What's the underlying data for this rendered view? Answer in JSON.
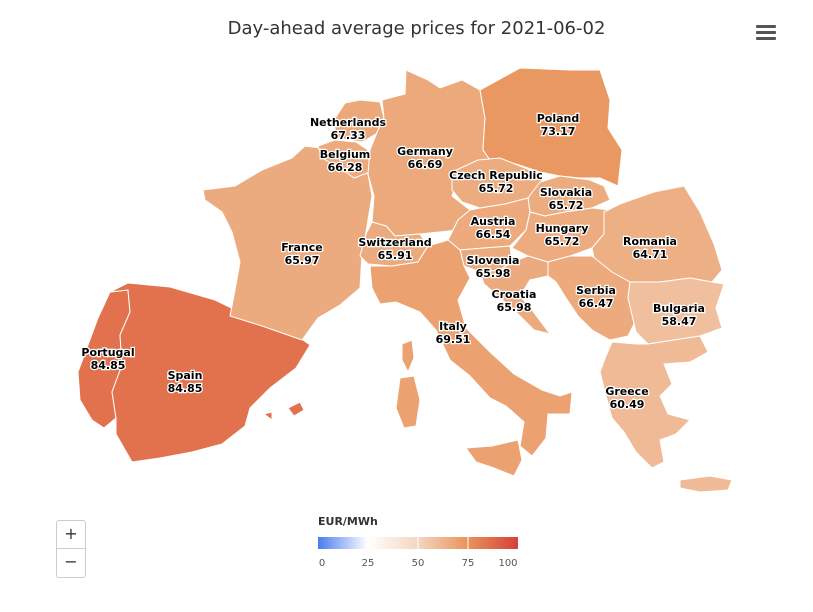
{
  "title": "Day-ahead average prices for 2021-06-02",
  "menu_icon": "hamburger-menu-icon",
  "zoom": {
    "in_label": "+",
    "out_label": "−"
  },
  "legend": {
    "title": "EUR/MWh",
    "min": 0,
    "max": 100,
    "ticks": [
      "0",
      "25",
      "50",
      "75",
      "100"
    ],
    "colors": [
      "#4a7cf0",
      "#ffffff",
      "#f4d6c0",
      "#e8935a",
      "#d6403a"
    ]
  },
  "chart_data": {
    "type": "choropleth",
    "unit": "EUR/MWh",
    "date": "2021-06-02",
    "regions": [
      {
        "name": "Netherlands",
        "value": "67.33"
      },
      {
        "name": "Belgium",
        "value": "66.28"
      },
      {
        "name": "Germany",
        "value": "66.69"
      },
      {
        "name": "Poland",
        "value": "73.17"
      },
      {
        "name": "Czech Republic",
        "value": "65.72"
      },
      {
        "name": "Slovakia",
        "value": "65.72"
      },
      {
        "name": "France",
        "value": "65.97"
      },
      {
        "name": "Switzerland",
        "value": "65.91"
      },
      {
        "name": "Austria",
        "value": "66.54"
      },
      {
        "name": "Hungary",
        "value": "65.72"
      },
      {
        "name": "Romania",
        "value": "64.71"
      },
      {
        "name": "Slovenia",
        "value": "65.98"
      },
      {
        "name": "Croatia",
        "value": "65.98"
      },
      {
        "name": "Serbia",
        "value": "66.47"
      },
      {
        "name": "Bulgaria",
        "value": "58.47"
      },
      {
        "name": "Italy",
        "value": "69.51"
      },
      {
        "name": "Portugal",
        "value": "84.85"
      },
      {
        "name": "Spain",
        "value": "84.85"
      },
      {
        "name": "Greece",
        "value": "60.49"
      }
    ]
  }
}
